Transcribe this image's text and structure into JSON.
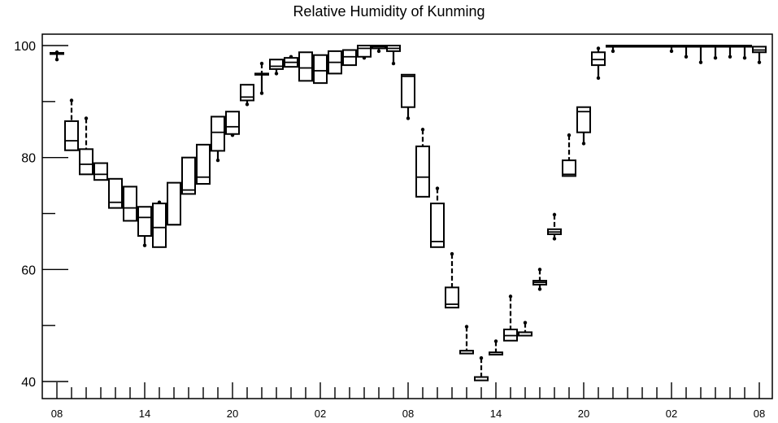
{
  "chart_data": {
    "type": "box",
    "title": "Relative Humidity of Kunming",
    "xlabel": "",
    "ylabel": "",
    "x_tick_labels": [
      "08",
      "14",
      "20",
      "02",
      "08",
      "14",
      "20",
      "02",
      "08"
    ],
    "x_tick_hours": [
      0,
      6,
      12,
      18,
      24,
      30,
      36,
      42,
      48
    ],
    "y_tick_labels": [
      "40",
      "60",
      "80",
      "100"
    ],
    "y_tick_values": [
      40,
      60,
      80,
      100
    ],
    "ylim": [
      38,
      102
    ],
    "xlim": [
      -1,
      49
    ],
    "grid": false,
    "boxes": [
      {
        "hour": 0,
        "min": 97.5,
        "q1": 98.5,
        "median": 98.6,
        "q3": 98.7,
        "max": 98.8
      },
      {
        "hour": 1,
        "min": 81.3,
        "q1": 81.3,
        "median": 83.0,
        "q3": 86.5,
        "max": 90.2
      },
      {
        "hour": 2,
        "min": 77.0,
        "q1": 77.0,
        "median": 78.8,
        "q3": 81.5,
        "max": 87.0
      },
      {
        "hour": 3,
        "min": 76.0,
        "q1": 76.0,
        "median": 77.0,
        "q3": 79.0,
        "max": 79.0
      },
      {
        "hour": 4,
        "min": 71.0,
        "q1": 71.0,
        "median": 72.0,
        "q3": 76.2,
        "max": 76.2
      },
      {
        "hour": 5,
        "min": 68.7,
        "q1": 68.7,
        "median": 71.0,
        "q3": 74.8,
        "max": 74.8
      },
      {
        "hour": 6,
        "min": 64.3,
        "q1": 66.0,
        "median": 69.3,
        "q3": 71.2,
        "max": 71.2
      },
      {
        "hour": 7,
        "min": 64.0,
        "q1": 64.0,
        "median": 67.5,
        "q3": 71.8,
        "max": 72.0
      },
      {
        "hour": 8,
        "min": 68.0,
        "q1": 68.0,
        "median": 68.0,
        "q3": 75.5,
        "max": 75.5
      },
      {
        "hour": 9,
        "min": 73.5,
        "q1": 73.5,
        "median": 74.2,
        "q3": 80.0,
        "max": 80.0
      },
      {
        "hour": 10,
        "min": 75.3,
        "q1": 75.3,
        "median": 76.5,
        "q3": 82.3,
        "max": 82.3
      },
      {
        "hour": 11,
        "min": 79.5,
        "q1": 81.2,
        "median": 84.5,
        "q3": 87.3,
        "max": 87.3
      },
      {
        "hour": 12,
        "min": 84.0,
        "q1": 84.2,
        "median": 85.5,
        "q3": 88.2,
        "max": 88.2
      },
      {
        "hour": 13,
        "min": 89.5,
        "q1": 90.2,
        "median": 90.8,
        "q3": 93.0,
        "max": 93.0
      },
      {
        "hour": 14,
        "min": 91.5,
        "q1": 95.0,
        "median": 95.0,
        "q3": 95.0,
        "max": 96.8
      },
      {
        "hour": 15,
        "min": 95.0,
        "q1": 95.8,
        "median": 96.3,
        "q3": 97.5,
        "max": 97.5
      },
      {
        "hour": 16,
        "min": 96.2,
        "q1": 96.2,
        "median": 97.0,
        "q3": 97.8,
        "max": 98.0
      },
      {
        "hour": 17,
        "min": 93.7,
        "q1": 93.7,
        "median": 96.0,
        "q3": 98.8,
        "max": 98.8
      },
      {
        "hour": 18,
        "min": 93.3,
        "q1": 93.3,
        "median": 95.5,
        "q3": 98.3,
        "max": 98.3
      },
      {
        "hour": 19,
        "min": 95.0,
        "q1": 95.0,
        "median": 97.0,
        "q3": 99.0,
        "max": 99.0
      },
      {
        "hour": 20,
        "min": 96.5,
        "q1": 96.5,
        "median": 98.0,
        "q3": 99.2,
        "max": 99.2
      },
      {
        "hour": 21,
        "min": 97.8,
        "q1": 98.0,
        "median": 99.5,
        "q3": 100.0,
        "max": 100.0
      },
      {
        "hour": 22,
        "min": 99.0,
        "q1": 99.5,
        "median": 99.8,
        "q3": 100.0,
        "max": 100.0
      },
      {
        "hour": 23,
        "min": 96.8,
        "q1": 99.0,
        "median": 99.5,
        "q3": 100.0,
        "max": 100.0
      },
      {
        "hour": 24,
        "min": 87.0,
        "q1": 89.0,
        "median": 94.5,
        "q3": 94.8,
        "max": 94.8
      },
      {
        "hour": 25,
        "min": 73.0,
        "q1": 73.0,
        "median": 76.5,
        "q3": 82.0,
        "max": 85.0
      },
      {
        "hour": 26,
        "min": 64.0,
        "q1": 64.0,
        "median": 65.0,
        "q3": 71.8,
        "max": 74.5
      },
      {
        "hour": 27,
        "min": 53.2,
        "q1": 53.2,
        "median": 53.8,
        "q3": 56.8,
        "max": 62.8
      },
      {
        "hour": 28,
        "min": 45.0,
        "q1": 45.0,
        "median": 45.5,
        "q3": 45.5,
        "max": 49.8
      },
      {
        "hour": 29,
        "min": 40.2,
        "q1": 40.2,
        "median": 40.8,
        "q3": 40.8,
        "max": 44.2
      },
      {
        "hour": 30,
        "min": 44.8,
        "q1": 44.8,
        "median": 45.2,
        "q3": 45.2,
        "max": 47.2
      },
      {
        "hour": 31,
        "min": 47.3,
        "q1": 47.3,
        "median": 48.2,
        "q3": 49.3,
        "max": 55.2
      },
      {
        "hour": 32,
        "min": 48.2,
        "q1": 48.2,
        "median": 48.8,
        "q3": 48.8,
        "max": 50.5
      },
      {
        "hour": 33,
        "min": 56.5,
        "q1": 57.3,
        "median": 57.7,
        "q3": 58.0,
        "max": 60.0
      },
      {
        "hour": 34,
        "min": 65.5,
        "q1": 66.3,
        "median": 66.7,
        "q3": 67.2,
        "max": 69.8
      },
      {
        "hour": 35,
        "min": 76.7,
        "q1": 76.7,
        "median": 77.0,
        "q3": 79.5,
        "max": 84.0
      },
      {
        "hour": 36,
        "min": 82.5,
        "q1": 84.5,
        "median": 88.2,
        "q3": 89.0,
        "max": 89.0
      },
      {
        "hour": 37,
        "min": 94.2,
        "q1": 96.5,
        "median": 97.5,
        "q3": 98.8,
        "max": 99.5
      },
      {
        "hour": 38,
        "min": 99.0,
        "q1": 99.8,
        "median": 100.0,
        "q3": 100.0,
        "max": 100.0
      },
      {
        "hour": 39,
        "min": 100.0,
        "q1": 100.0,
        "median": 100.0,
        "q3": 100.0,
        "max": 100.0
      },
      {
        "hour": 40,
        "min": 100.0,
        "q1": 100.0,
        "median": 100.0,
        "q3": 100.0,
        "max": 100.0
      },
      {
        "hour": 41,
        "min": 100.0,
        "q1": 100.0,
        "median": 100.0,
        "q3": 100.0,
        "max": 100.0
      },
      {
        "hour": 42,
        "min": 99.0,
        "q1": 100.0,
        "median": 100.0,
        "q3": 100.0,
        "max": 100.0
      },
      {
        "hour": 43,
        "min": 98.0,
        "q1": 100.0,
        "median": 100.0,
        "q3": 100.0,
        "max": 100.0
      },
      {
        "hour": 44,
        "min": 97.0,
        "q1": 99.8,
        "median": 99.8,
        "q3": 100.0,
        "max": 100.0
      },
      {
        "hour": 45,
        "min": 97.8,
        "q1": 100.0,
        "median": 100.0,
        "q3": 100.0,
        "max": 100.0
      },
      {
        "hour": 46,
        "min": 98.0,
        "q1": 100.0,
        "median": 100.0,
        "q3": 100.0,
        "max": 100.0
      },
      {
        "hour": 47,
        "min": 97.8,
        "q1": 100.0,
        "median": 100.0,
        "q3": 100.0,
        "max": 100.0
      },
      {
        "hour": 48,
        "min": 97.0,
        "q1": 98.8,
        "median": 99.2,
        "q3": 99.8,
        "max": 99.8
      }
    ]
  }
}
